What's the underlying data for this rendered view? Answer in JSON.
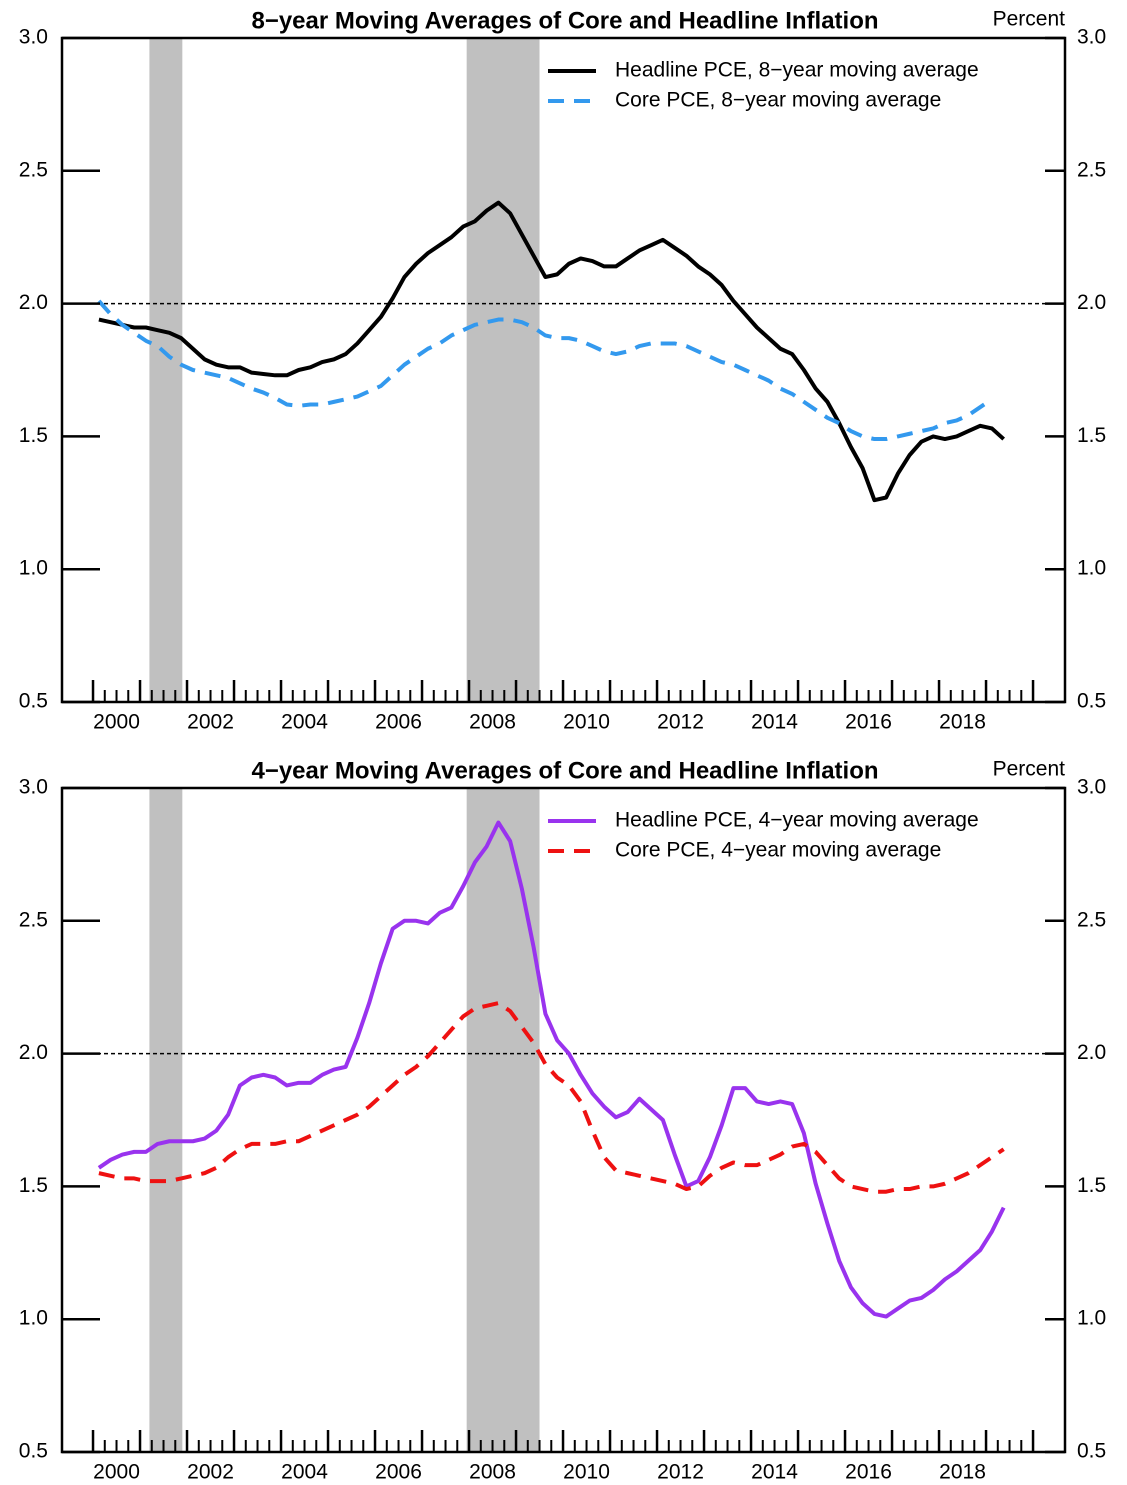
{
  "chart_data": [
    {
      "type": "line",
      "title": "8−year Moving Averages of Core and Headline Inflation",
      "y_label": "Percent",
      "x": [
        2000.125,
        2000.375,
        2000.625,
        2000.875,
        2001.125,
        2001.375,
        2001.625,
        2001.875,
        2002.125,
        2002.375,
        2002.625,
        2002.875,
        2003.125,
        2003.375,
        2003.625,
        2003.875,
        2004.125,
        2004.375,
        2004.625,
        2004.875,
        2005.125,
        2005.375,
        2005.625,
        2005.875,
        2006.125,
        2006.375,
        2006.625,
        2006.875,
        2007.125,
        2007.375,
        2007.625,
        2007.875,
        2008.125,
        2008.375,
        2008.625,
        2008.875,
        2009.125,
        2009.375,
        2009.625,
        2009.875,
        2010.125,
        2010.375,
        2010.625,
        2010.875,
        2011.125,
        2011.375,
        2011.625,
        2011.875,
        2012.125,
        2012.375,
        2012.625,
        2012.875,
        2013.125,
        2013.375,
        2013.625,
        2013.875,
        2014.125,
        2014.375,
        2014.625,
        2014.875,
        2015.125,
        2015.375,
        2015.625,
        2015.875,
        2016.125,
        2016.375,
        2016.625,
        2016.875,
        2017.125,
        2017.375,
        2017.625,
        2017.875,
        2018.125,
        2018.375,
        2018.625,
        2018.875,
        2019.125,
        2019.375
      ],
      "series": [
        {
          "name": "Headline PCE, 8−year moving average",
          "color": "#000000",
          "dash": false,
          "values": [
            1.94,
            1.93,
            1.92,
            1.91,
            1.91,
            1.9,
            1.89,
            1.87,
            1.83,
            1.79,
            1.77,
            1.76,
            1.76,
            1.74,
            1.735,
            1.73,
            1.73,
            1.75,
            1.76,
            1.78,
            1.79,
            1.81,
            1.85,
            1.9,
            1.95,
            2.02,
            2.1,
            2.15,
            2.19,
            2.22,
            2.25,
            2.29,
            2.31,
            2.35,
            2.38,
            2.34,
            2.26,
            2.18,
            2.1,
            2.11,
            2.15,
            2.17,
            2.16,
            2.14,
            2.14,
            2.17,
            2.2,
            2.22,
            2.24,
            2.21,
            2.18,
            2.14,
            2.11,
            2.07,
            2.01,
            1.96,
            1.91,
            1.87,
            1.83,
            1.81,
            1.75,
            1.68,
            1.63,
            1.55,
            1.46,
            1.38,
            1.26,
            1.27,
            1.36,
            1.43,
            1.48,
            1.5,
            1.49,
            1.5,
            1.52,
            1.54,
            1.53,
            1.49
          ]
        },
        {
          "name": "Core PCE, 8−year moving average",
          "color": "#3399ee",
          "dash": true,
          "values": [
            2.01,
            1.96,
            1.92,
            1.89,
            1.86,
            1.84,
            1.8,
            1.77,
            1.75,
            1.74,
            1.73,
            1.72,
            1.7,
            1.68,
            1.665,
            1.645,
            1.62,
            1.615,
            1.62,
            1.62,
            1.63,
            1.64,
            1.65,
            1.67,
            1.69,
            1.73,
            1.77,
            1.8,
            1.83,
            1.85,
            1.88,
            1.9,
            1.92,
            1.93,
            1.94,
            1.94,
            1.93,
            1.91,
            1.88,
            1.87,
            1.87,
            1.86,
            1.84,
            1.82,
            1.81,
            1.82,
            1.84,
            1.85,
            1.85,
            1.85,
            1.84,
            1.82,
            1.8,
            1.78,
            1.77,
            1.75,
            1.73,
            1.71,
            1.68,
            1.66,
            1.63,
            1.6,
            1.57,
            1.55,
            1.52,
            1.5,
            1.49,
            1.49,
            1.5,
            1.51,
            1.52,
            1.53,
            1.55,
            1.56,
            1.58,
            1.61,
            1.64,
            null
          ]
        }
      ],
      "xlim": [
        1999.34,
        2020.68
      ],
      "xticks": [
        {
          "value": 2000.5,
          "label": "2000"
        },
        {
          "value": 2002.5,
          "label": "2002"
        },
        {
          "value": 2004.5,
          "label": "2004"
        },
        {
          "value": 2006.5,
          "label": "2006"
        },
        {
          "value": 2008.5,
          "label": "2008"
        },
        {
          "value": 2010.5,
          "label": "2010"
        },
        {
          "value": 2012.5,
          "label": "2012"
        },
        {
          "value": 2014.5,
          "label": "2014"
        },
        {
          "value": 2016.5,
          "label": "2016"
        },
        {
          "value": 2018.5,
          "label": "2018"
        }
      ],
      "ylim": [
        0.5,
        3.0
      ],
      "yticks": [
        0.5,
        {
          "value": 1,
          "label": "1.0"
        },
        1.5,
        {
          "value": 2,
          "label": "2.0"
        },
        2.5,
        {
          "value": 3,
          "label": "3.0"
        }
      ],
      "hline": 2,
      "shading": [
        [
          2001.2,
          2001.9
        ],
        [
          2007.95,
          2009.5
        ]
      ],
      "legend": "upper right"
    },
    {
      "type": "line",
      "title": "4−year Moving Averages of Core and Headline Inflation",
      "y_label": "Percent",
      "x": [
        2000.125,
        2000.375,
        2000.625,
        2000.875,
        2001.125,
        2001.375,
        2001.625,
        2001.875,
        2002.125,
        2002.375,
        2002.625,
        2002.875,
        2003.125,
        2003.375,
        2003.625,
        2003.875,
        2004.125,
        2004.375,
        2004.625,
        2004.875,
        2005.125,
        2005.375,
        2005.625,
        2005.875,
        2006.125,
        2006.375,
        2006.625,
        2006.875,
        2007.125,
        2007.375,
        2007.625,
        2007.875,
        2008.125,
        2008.375,
        2008.625,
        2008.875,
        2009.125,
        2009.375,
        2009.625,
        2009.875,
        2010.125,
        2010.375,
        2010.625,
        2010.875,
        2011.125,
        2011.375,
        2011.625,
        2011.875,
        2012.125,
        2012.375,
        2012.625,
        2012.875,
        2013.125,
        2013.375,
        2013.625,
        2013.875,
        2014.125,
        2014.375,
        2014.625,
        2014.875,
        2015.125,
        2015.375,
        2015.625,
        2015.875,
        2016.125,
        2016.375,
        2016.625,
        2016.875,
        2017.125,
        2017.375,
        2017.625,
        2017.875,
        2018.125,
        2018.375,
        2018.625,
        2018.875,
        2019.125,
        2019.375
      ],
      "series": [
        {
          "name": "Headline PCE, 4−year moving average",
          "color": "#9933ee",
          "dash": false,
          "values": [
            1.57,
            1.6,
            1.62,
            1.63,
            1.63,
            1.66,
            1.67,
            1.67,
            1.67,
            1.68,
            1.71,
            1.77,
            1.88,
            1.91,
            1.92,
            1.91,
            1.88,
            1.89,
            1.89,
            1.92,
            1.94,
            1.95,
            2.06,
            2.19,
            2.34,
            2.47,
            2.5,
            2.5,
            2.49,
            2.53,
            2.55,
            2.63,
            2.72,
            2.78,
            2.87,
            2.8,
            2.62,
            2.4,
            2.15,
            2.05,
            2.0,
            1.92,
            1.85,
            1.8,
            1.76,
            1.78,
            1.83,
            1.79,
            1.75,
            1.62,
            1.5,
            1.52,
            1.61,
            1.73,
            1.87,
            1.87,
            1.82,
            1.81,
            1.82,
            1.81,
            1.7,
            1.51,
            1.36,
            1.22,
            1.12,
            1.06,
            1.02,
            1.01,
            1.04,
            1.07,
            1.08,
            1.11,
            1.15,
            1.18,
            1.22,
            1.26,
            1.33,
            1.42
          ]
        },
        {
          "name": "Core PCE, 4−year moving average",
          "color": "#ee1111",
          "dash": true,
          "values": [
            1.55,
            1.54,
            1.53,
            1.53,
            1.52,
            1.52,
            1.52,
            1.53,
            1.54,
            1.55,
            1.57,
            1.61,
            1.64,
            1.66,
            1.66,
            1.66,
            1.67,
            1.67,
            1.69,
            1.71,
            1.73,
            1.75,
            1.77,
            1.8,
            1.84,
            1.88,
            1.92,
            1.95,
            1.99,
            2.04,
            2.09,
            2.14,
            2.17,
            2.18,
            2.19,
            2.16,
            2.1,
            2.04,
            1.96,
            1.91,
            1.88,
            1.82,
            1.71,
            1.61,
            1.56,
            1.55,
            1.54,
            1.53,
            1.52,
            1.51,
            1.49,
            1.5,
            1.54,
            1.57,
            1.59,
            1.58,
            1.58,
            1.6,
            1.62,
            1.65,
            1.66,
            1.63,
            1.58,
            1.53,
            1.5,
            1.49,
            1.48,
            1.48,
            1.49,
            1.49,
            1.5,
            1.5,
            1.51,
            1.53,
            1.55,
            1.58,
            1.61,
            1.64
          ]
        }
      ],
      "xlim": [
        1999.34,
        2020.68
      ],
      "xticks": [
        {
          "value": 2000.5,
          "label": "2000"
        },
        {
          "value": 2002.5,
          "label": "2002"
        },
        {
          "value": 2004.5,
          "label": "2004"
        },
        {
          "value": 2006.5,
          "label": "2006"
        },
        {
          "value": 2008.5,
          "label": "2008"
        },
        {
          "value": 2010.5,
          "label": "2010"
        },
        {
          "value": 2012.5,
          "label": "2012"
        },
        {
          "value": 2014.5,
          "label": "2014"
        },
        {
          "value": 2016.5,
          "label": "2016"
        },
        {
          "value": 2018.5,
          "label": "2018"
        }
      ],
      "ylim": [
        0.5,
        3.0
      ],
      "yticks": [
        0.5,
        {
          "value": 1,
          "label": "1.0"
        },
        1.5,
        {
          "value": 2,
          "label": "2.0"
        },
        2.5,
        {
          "value": 3,
          "label": "3.0"
        }
      ],
      "hline": 2,
      "shading": [
        [
          2001.2,
          2001.9
        ],
        [
          2007.95,
          2009.5
        ]
      ],
      "legend": "upper right"
    }
  ]
}
